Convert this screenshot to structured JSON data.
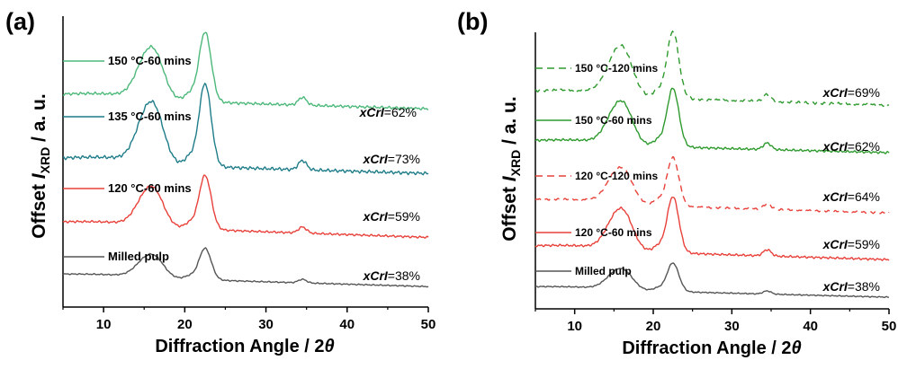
{
  "chart_data": [
    {
      "panel": "(a)",
      "type": "line",
      "xlabel_prefix": "Diffraction Angle / 2",
      "xlabel_symbol": "θ",
      "ylabel_prefix": "Offset ",
      "ylabel_symbol": "I",
      "ylabel_sub": "XRD",
      "ylabel_suffix": " / a. u.",
      "xlim": [
        5,
        50
      ],
      "xticks": [
        "10",
        "20",
        "30",
        "40",
        "50"
      ],
      "grid": false,
      "series": [
        {
          "name": "Milled pulp",
          "color": "#555555",
          "cri_prefix": "xCrI",
          "cri_value": "=38%",
          "offset": 0,
          "peak_scale": 0.8,
          "line_style": "solid"
        },
        {
          "name": "120 °C-60 mins",
          "color": "#e8413a",
          "cri_prefix": "xCrI",
          "cri_value": "=59%",
          "offset": 1,
          "peak_scale": 1.15,
          "line_style": "solid"
        },
        {
          "name": "135 °C-60 mins",
          "color": "#1e7c89",
          "cri_prefix": "xCrI",
          "cri_value": "=73%",
          "offset": 2,
          "peak_scale": 1.3,
          "line_style": "solid"
        },
        {
          "name": "150 °C-60 mins",
          "color": "#4cb87a",
          "cri_prefix": "xCrI",
          "cri_value": "=62%",
          "offset": 3,
          "peak_scale": 1.2,
          "line_style": "solid"
        }
      ],
      "peaks_deg": [
        15.2,
        16.5,
        20.6,
        22.5,
        34.5
      ]
    },
    {
      "panel": "(b)",
      "type": "line",
      "xlabel_prefix": "Diffraction Angle / 2",
      "xlabel_symbol": "θ",
      "ylabel_prefix": "Offset ",
      "ylabel_symbol": "I",
      "ylabel_sub": "XRD",
      "ylabel_suffix": " / a. u.",
      "xlim": [
        5,
        50
      ],
      "xticks": [
        "10",
        "20",
        "30",
        "40",
        "50"
      ],
      "grid": false,
      "series": [
        {
          "name": "Milled pulp",
          "color": "#555555",
          "cri_prefix": "xCrI",
          "cri_value": "=38%",
          "offset": 0,
          "peak_scale": 0.8,
          "line_style": "solid"
        },
        {
          "name": "120 °C-60 mins",
          "color": "#e8413a",
          "cri_prefix": "xCrI",
          "cri_value": "=59%",
          "offset": 1,
          "peak_scale": 1.15,
          "line_style": "solid"
        },
        {
          "name": "120 °C-120 mins",
          "color": "#e8413a",
          "cri_prefix": "xCrI",
          "cri_value": "=64%",
          "offset": 2,
          "peak_scale": 1.1,
          "line_style": "dashed"
        },
        {
          "name": "150 °C-60 mins",
          "color": "#2e9a2e",
          "cri_prefix": "xCrI",
          "cri_value": "=62%",
          "offset": 3,
          "peak_scale": 1.2,
          "line_style": "solid"
        },
        {
          "name": "150 °C-120 mins",
          "color": "#2e9a2e",
          "cri_prefix": "xCrI",
          "cri_value": "=69%",
          "offset": 4,
          "peak_scale": 1.25,
          "line_style": "dashed"
        }
      ],
      "peaks_deg": [
        15.2,
        16.5,
        20.6,
        22.5,
        34.5
      ]
    }
  ]
}
